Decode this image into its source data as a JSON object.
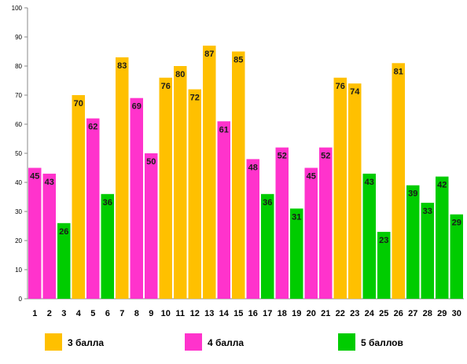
{
  "chart_data": {
    "type": "bar",
    "categories": [
      "1",
      "2",
      "3",
      "4",
      "5",
      "6",
      "7",
      "8",
      "9",
      "10",
      "11",
      "12",
      "13",
      "14",
      "15",
      "16",
      "17",
      "18",
      "19",
      "20",
      "21",
      "22",
      "23",
      "24",
      "25",
      "26",
      "27",
      "28",
      "29",
      "30"
    ],
    "values": [
      45,
      43,
      26,
      70,
      62,
      36,
      83,
      69,
      50,
      76,
      80,
      72,
      87,
      61,
      85,
      48,
      36,
      52,
      31,
      45,
      52,
      76,
      74,
      43,
      23,
      81,
      39,
      33,
      42,
      29
    ],
    "groups": [
      "4",
      "4",
      "5",
      "3",
      "4",
      "5",
      "3",
      "4",
      "4",
      "3",
      "3",
      "3",
      "3",
      "4",
      "3",
      "4",
      "5",
      "4",
      "5",
      "4",
      "4",
      "3",
      "3",
      "5",
      "5",
      "3",
      "5",
      "5",
      "5",
      "5"
    ],
    "ylim": [
      0,
      100
    ],
    "yticks": [
      0,
      10,
      20,
      30,
      40,
      50,
      60,
      70,
      80,
      90,
      100
    ],
    "grid": false,
    "legend": [
      {
        "key": "3",
        "label": "3 балла",
        "color": "#ffc000"
      },
      {
        "key": "4",
        "label": "4 балла",
        "color": "#ff33cc"
      },
      {
        "key": "5",
        "label": "5 баллов",
        "color": "#00cc00"
      }
    ],
    "legend_position": "bottom"
  }
}
